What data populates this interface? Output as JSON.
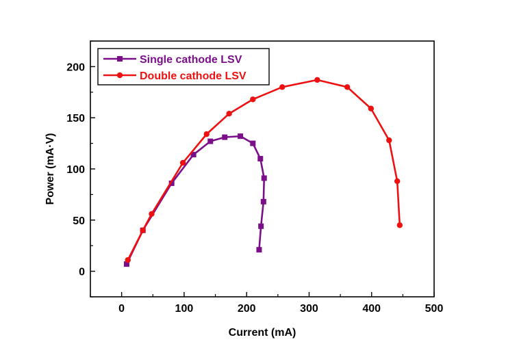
{
  "chart_data": {
    "type": "line",
    "title": "",
    "xlabel": "Current (mA)",
    "ylabel": "Power (mA·V)",
    "xlim": [
      -50,
      500
    ],
    "ylim": [
      -25,
      225
    ],
    "xticks": [
      0,
      100,
      200,
      300,
      400,
      500
    ],
    "yticks": [
      0,
      50,
      100,
      150,
      200
    ],
    "grid": false,
    "legend_position": "top-left",
    "series": [
      {
        "name": "Single cathode LSV",
        "color": "#7b0f8a",
        "marker": "square",
        "x": [
          8,
          34,
          80,
          115,
          142,
          165,
          190,
          210,
          222,
          228,
          227,
          223,
          220
        ],
        "y": [
          7,
          40,
          86,
          114,
          127,
          131,
          132,
          125,
          110,
          91,
          68,
          44,
          21
        ]
      },
      {
        "name": "Double cathode LSV",
        "color": "#ee1111",
        "marker": "circle",
        "x": [
          10,
          34,
          48,
          98,
          136,
          172,
          210,
          257,
          313,
          361,
          399,
          428,
          441,
          445
        ],
        "y": [
          11,
          40,
          56,
          106,
          134,
          154,
          168,
          180,
          187,
          180,
          159,
          128,
          88,
          45
        ]
      }
    ]
  }
}
